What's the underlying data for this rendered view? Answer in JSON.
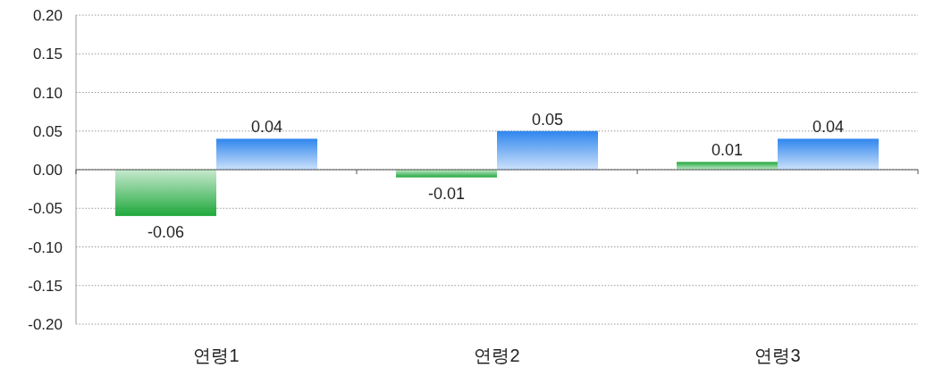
{
  "chart_data": {
    "type": "bar",
    "categories": [
      "연령1",
      "연령2",
      "연령3"
    ],
    "series": [
      {
        "color": "#1fa83c",
        "values": [
          -0.06,
          -0.01,
          0.01
        ]
      },
      {
        "color": "#2f86ee",
        "values": [
          0.04,
          0.05,
          0.04
        ]
      }
    ],
    "ylim": [
      -0.2,
      0.2
    ],
    "yticks": [
      {
        "value": -0.2,
        "label": "-0.20"
      },
      {
        "value": -0.15,
        "label": "-0.15"
      },
      {
        "value": -0.1,
        "label": "-0.10"
      },
      {
        "value": -0.05,
        "label": "-0.05"
      },
      {
        "value": 0,
        "label": "0.00"
      },
      {
        "value": 0.05,
        "label": "0.05"
      },
      {
        "value": 0.1,
        "label": "0.10"
      },
      {
        "value": 0.15,
        "label": "0.15"
      },
      {
        "value": 0.2,
        "label": "0.20"
      }
    ],
    "grid": "y",
    "data_labels": true
  }
}
